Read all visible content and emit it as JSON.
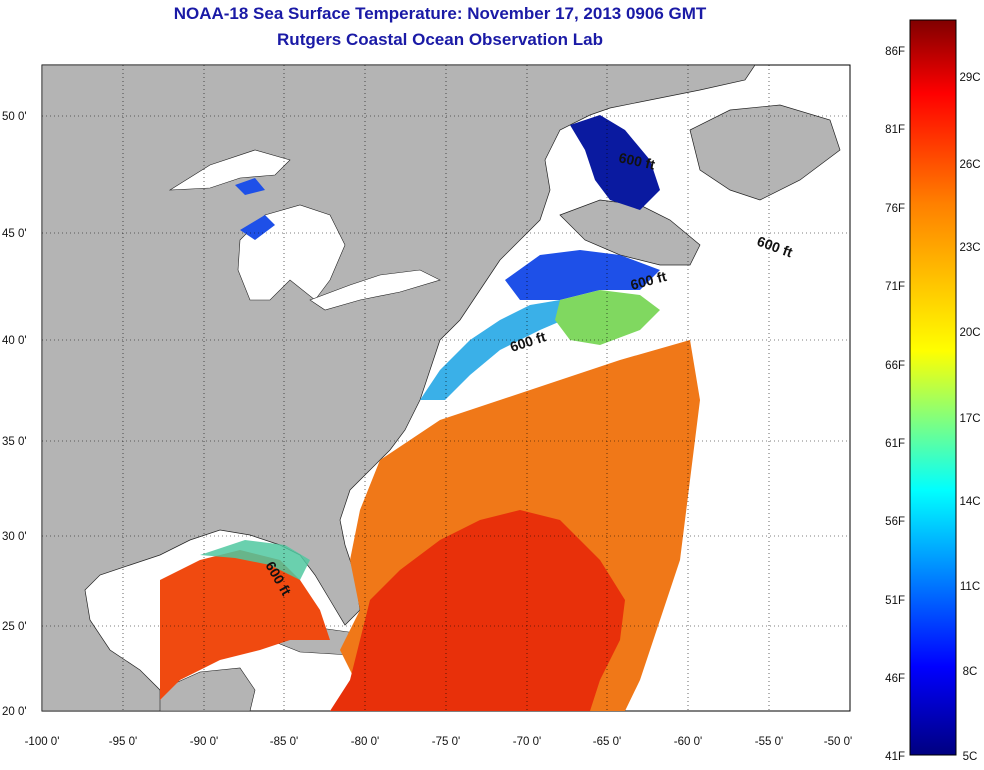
{
  "title": "NOAA-18 Sea Surface Temperature:  November 17, 2013 0906 GMT",
  "subtitle": "Rutgers Coastal Ocean Observation Lab",
  "lat_labels": [
    "50 0'",
    "45 0'",
    "40 0'",
    "35 0'",
    "30 0'",
    "25 0'",
    "20 0'"
  ],
  "lon_labels": [
    "-100 0'",
    "-95 0'",
    "-90 0'",
    "-85 0'",
    "-80 0'",
    "-75 0'",
    "-70 0'",
    "-65 0'",
    "-60 0'",
    "-55 0'",
    "-50 0'"
  ],
  "contour_label": "600 ft",
  "colorbar": {
    "f_labels": [
      "86F",
      "81F",
      "76F",
      "71F",
      "66F",
      "61F",
      "56F",
      "51F",
      "46F",
      "41F"
    ],
    "c_labels": [
      "29C",
      "26C",
      "23C",
      "20C",
      "17C",
      "14C",
      "11C",
      "8C",
      "5C"
    ]
  },
  "colors": {
    "land": "#b4b4b4",
    "no_data": "#ffffff",
    "title": "#1a1aa6"
  }
}
